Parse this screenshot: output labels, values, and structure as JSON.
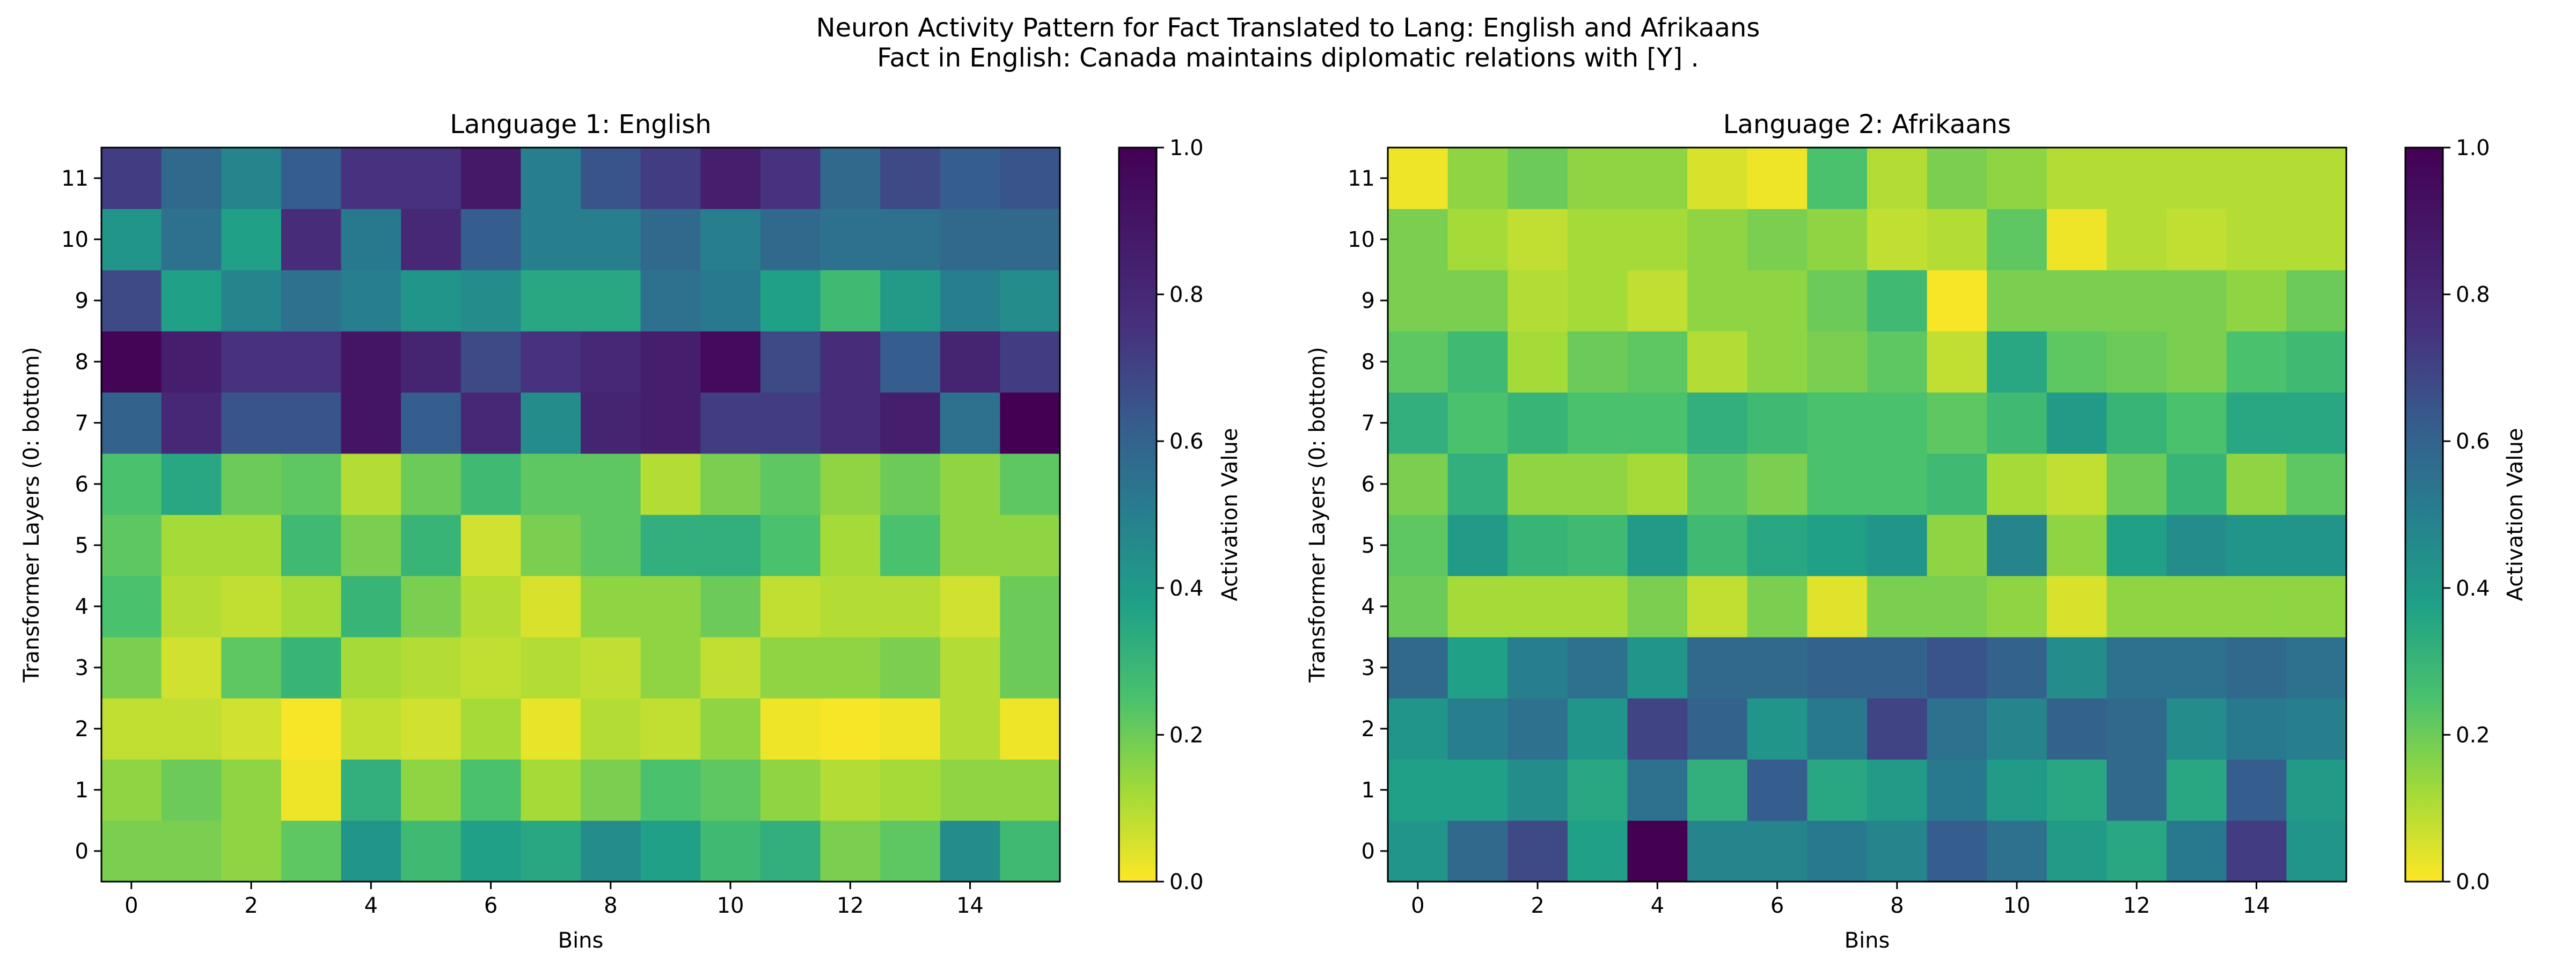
{
  "figure": {
    "suptitle_line1": "Neuron Activity Pattern for Fact Translated to Lang: English and Afrikaans",
    "suptitle_line2": "Fact in English: Canada maintains diplomatic relations with [Y] ."
  },
  "chart_data": [
    {
      "type": "heatmap",
      "title": "Language 1: English",
      "xlabel": "Bins",
      "ylabel": "Transformer Layers (0: bottom)",
      "colorbar_label": "Activation Value",
      "colormap": "viridis_r",
      "vmin": 0.0,
      "vmax": 1.0,
      "colorbar_ticks": [
        "0.0",
        "0.2",
        "0.4",
        "0.6",
        "0.8",
        "1.0"
      ],
      "x_ticks": [
        0,
        2,
        4,
        6,
        8,
        10,
        12,
        14
      ],
      "y_ticks": [
        0,
        1,
        2,
        3,
        4,
        5,
        6,
        7,
        8,
        9,
        10,
        11
      ],
      "x_bins": 16,
      "layers": 12,
      "values_by_layer": [
        [
          0.18,
          0.18,
          0.15,
          0.22,
          0.42,
          0.28,
          0.38,
          0.35,
          0.45,
          0.38,
          0.28,
          0.32,
          0.18,
          0.22,
          0.45,
          0.28
        ],
        [
          0.15,
          0.2,
          0.15,
          0.02,
          0.32,
          0.15,
          0.25,
          0.12,
          0.18,
          0.25,
          0.22,
          0.15,
          0.1,
          0.12,
          0.15,
          0.15
        ],
        [
          0.08,
          0.08,
          0.06,
          0.01,
          0.08,
          0.06,
          0.12,
          0.03,
          0.1,
          0.08,
          0.15,
          0.02,
          0.01,
          0.02,
          0.1,
          0.02
        ],
        [
          0.18,
          0.06,
          0.22,
          0.3,
          0.12,
          0.1,
          0.08,
          0.1,
          0.08,
          0.15,
          0.08,
          0.15,
          0.15,
          0.18,
          0.1,
          0.2
        ],
        [
          0.25,
          0.1,
          0.08,
          0.12,
          0.3,
          0.18,
          0.1,
          0.05,
          0.15,
          0.15,
          0.2,
          0.08,
          0.1,
          0.1,
          0.06,
          0.2
        ],
        [
          0.22,
          0.12,
          0.12,
          0.28,
          0.18,
          0.3,
          0.06,
          0.18,
          0.22,
          0.32,
          0.32,
          0.25,
          0.12,
          0.25,
          0.15,
          0.15
        ],
        [
          0.25,
          0.35,
          0.2,
          0.22,
          0.1,
          0.2,
          0.28,
          0.22,
          0.22,
          0.1,
          0.18,
          0.22,
          0.15,
          0.2,
          0.15,
          0.22
        ],
        [
          0.6,
          0.8,
          0.65,
          0.65,
          0.9,
          0.62,
          0.8,
          0.45,
          0.82,
          0.85,
          0.72,
          0.72,
          0.78,
          0.85,
          0.55,
          1.0
        ],
        [
          0.98,
          0.85,
          0.75,
          0.75,
          0.9,
          0.82,
          0.68,
          0.75,
          0.8,
          0.85,
          0.95,
          0.68,
          0.78,
          0.62,
          0.82,
          0.72
        ],
        [
          0.68,
          0.38,
          0.48,
          0.55,
          0.5,
          0.42,
          0.45,
          0.35,
          0.35,
          0.55,
          0.52,
          0.38,
          0.28,
          0.4,
          0.5,
          0.45
        ],
        [
          0.42,
          0.55,
          0.38,
          0.78,
          0.52,
          0.8,
          0.62,
          0.5,
          0.5,
          0.58,
          0.5,
          0.58,
          0.55,
          0.55,
          0.58,
          0.58
        ],
        [
          0.72,
          0.58,
          0.48,
          0.62,
          0.75,
          0.75,
          0.88,
          0.5,
          0.65,
          0.72,
          0.85,
          0.75,
          0.58,
          0.68,
          0.62,
          0.65
        ]
      ]
    },
    {
      "type": "heatmap",
      "title": "Language 2: Afrikaans",
      "xlabel": "Bins",
      "ylabel": "Transformer Layers (0: bottom)",
      "colorbar_label": "Activation Value",
      "colormap": "viridis_r",
      "vmin": 0.0,
      "vmax": 1.0,
      "colorbar_ticks": [
        "0.0",
        "0.2",
        "0.4",
        "0.6",
        "0.8",
        "1.0"
      ],
      "x_ticks": [
        0,
        2,
        4,
        6,
        8,
        10,
        12,
        14
      ],
      "y_ticks": [
        0,
        1,
        2,
        3,
        4,
        5,
        6,
        7,
        8,
        9,
        10,
        11
      ],
      "x_bins": 16,
      "layers": 12,
      "values_by_layer": [
        [
          0.42,
          0.58,
          0.68,
          0.38,
          1.0,
          0.48,
          0.48,
          0.52,
          0.48,
          0.62,
          0.55,
          0.4,
          0.35,
          0.52,
          0.72,
          0.42
        ],
        [
          0.38,
          0.38,
          0.45,
          0.35,
          0.55,
          0.32,
          0.62,
          0.35,
          0.4,
          0.52,
          0.4,
          0.35,
          0.58,
          0.35,
          0.62,
          0.4
        ],
        [
          0.42,
          0.5,
          0.55,
          0.42,
          0.7,
          0.6,
          0.42,
          0.52,
          0.7,
          0.55,
          0.48,
          0.6,
          0.58,
          0.45,
          0.52,
          0.5
        ],
        [
          0.58,
          0.38,
          0.5,
          0.55,
          0.42,
          0.58,
          0.58,
          0.6,
          0.6,
          0.65,
          0.6,
          0.45,
          0.55,
          0.55,
          0.58,
          0.55
        ],
        [
          0.2,
          0.12,
          0.12,
          0.12,
          0.18,
          0.08,
          0.18,
          0.04,
          0.18,
          0.18,
          0.15,
          0.05,
          0.15,
          0.15,
          0.15,
          0.15
        ],
        [
          0.22,
          0.4,
          0.3,
          0.28,
          0.4,
          0.28,
          0.35,
          0.38,
          0.42,
          0.15,
          0.48,
          0.15,
          0.38,
          0.45,
          0.42,
          0.42
        ],
        [
          0.18,
          0.32,
          0.15,
          0.15,
          0.12,
          0.22,
          0.18,
          0.25,
          0.25,
          0.28,
          0.12,
          0.08,
          0.2,
          0.3,
          0.15,
          0.22
        ],
        [
          0.32,
          0.25,
          0.3,
          0.25,
          0.25,
          0.32,
          0.28,
          0.25,
          0.25,
          0.22,
          0.28,
          0.4,
          0.3,
          0.25,
          0.35,
          0.35
        ],
        [
          0.22,
          0.28,
          0.12,
          0.2,
          0.22,
          0.1,
          0.15,
          0.18,
          0.22,
          0.08,
          0.35,
          0.22,
          0.2,
          0.18,
          0.25,
          0.28
        ],
        [
          0.18,
          0.18,
          0.1,
          0.12,
          0.08,
          0.15,
          0.15,
          0.2,
          0.28,
          0.01,
          0.18,
          0.18,
          0.18,
          0.18,
          0.15,
          0.2
        ],
        [
          0.18,
          0.12,
          0.08,
          0.12,
          0.12,
          0.15,
          0.18,
          0.15,
          0.08,
          0.1,
          0.22,
          0.02,
          0.1,
          0.08,
          0.1,
          0.1
        ],
        [
          0.02,
          0.15,
          0.2,
          0.15,
          0.15,
          0.05,
          0.02,
          0.25,
          0.1,
          0.18,
          0.15,
          0.1,
          0.1,
          0.1,
          0.1,
          0.1
        ]
      ]
    }
  ]
}
